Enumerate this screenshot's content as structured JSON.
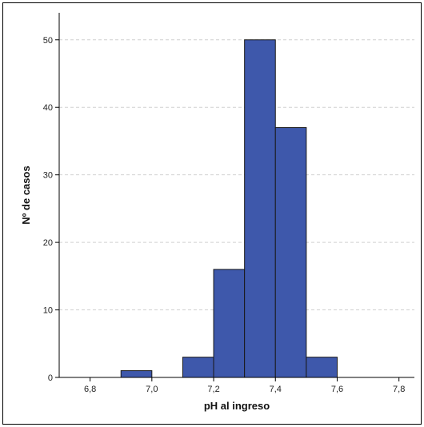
{
  "chart_data": {
    "type": "bar",
    "subtype": "histogram",
    "title": "",
    "xlabel": "pH al ingreso",
    "ylabel": "Nº de casos",
    "bins": [
      {
        "start": 6.9,
        "end": 7.0,
        "value": 1
      },
      {
        "start": 7.0,
        "end": 7.1,
        "value": 0
      },
      {
        "start": 7.1,
        "end": 7.2,
        "value": 3
      },
      {
        "start": 7.2,
        "end": 7.3,
        "value": 16
      },
      {
        "start": 7.3,
        "end": 7.4,
        "value": 50
      },
      {
        "start": 7.4,
        "end": 7.5,
        "value": 37
      },
      {
        "start": 7.5,
        "end": 7.6,
        "value": 3
      }
    ],
    "xlim": [
      6.7,
      7.85
    ],
    "ylim": [
      0,
      54
    ],
    "x_ticks": [
      {
        "value": 6.8,
        "label": "6,8"
      },
      {
        "value": 7.0,
        "label": "7,0"
      },
      {
        "value": 7.2,
        "label": "7,2"
      },
      {
        "value": 7.4,
        "label": "7,4"
      },
      {
        "value": 7.6,
        "label": "7,6"
      },
      {
        "value": 7.8,
        "label": "7,8"
      }
    ],
    "y_ticks": [
      {
        "value": 0,
        "label": "0"
      },
      {
        "value": 10,
        "label": "10"
      },
      {
        "value": 20,
        "label": "20"
      },
      {
        "value": 30,
        "label": "30"
      },
      {
        "value": 40,
        "label": "40"
      },
      {
        "value": 50,
        "label": "50"
      }
    ],
    "grid": {
      "horizontal": true,
      "vertical": false,
      "style": "dashed"
    },
    "legend": "none",
    "colors": {
      "bar_fill": "#3E58AB",
      "bar_stroke": "#1a1a1a",
      "grid": "#d0d0d0",
      "axis": "#000000",
      "frame": "#000000"
    }
  }
}
